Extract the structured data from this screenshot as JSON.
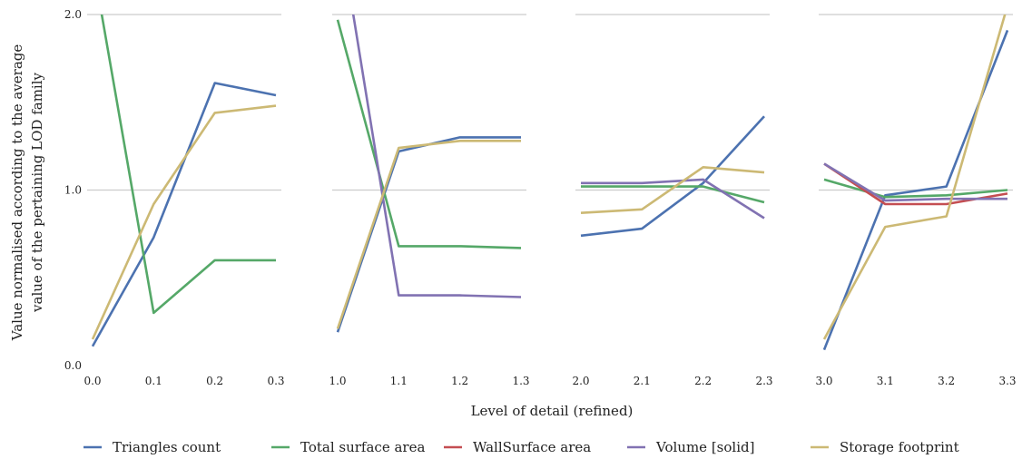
{
  "chart_data": {
    "type": "line",
    "ylabel": "Value normalised according to the average value of the pertaining LOD family",
    "ylabel_lines": [
      "Value normalised according to the average",
      "value of the pertaining LOD family"
    ],
    "xlabel": "Level of detail (refined)",
    "ylim": [
      0,
      2
    ],
    "yticks": [
      "0.0",
      "1.0",
      "2.0"
    ],
    "grid": "horizontal",
    "legend_position": "bottom",
    "series_styles": [
      {
        "name": "Triangles count",
        "color": "#4c72b0"
      },
      {
        "name": "Total surface area",
        "color": "#55a868"
      },
      {
        "name": "WallSurface area",
        "color": "#c44e52"
      },
      {
        "name": "Volume [solid]",
        "color": "#8172b2"
      },
      {
        "name": "Storage footprint",
        "color": "#ccb974"
      }
    ],
    "panels": [
      {
        "xticks": [
          "0.0",
          "0.1",
          "0.2",
          "0.3"
        ],
        "series": [
          {
            "name": "Triangles count",
            "values": [
              0.11,
              0.73,
              1.61,
              1.54
            ]
          },
          {
            "name": "Total surface area",
            "values": [
              2.3,
              0.3,
              0.6,
              0.6
            ]
          },
          {
            "name": "Storage footprint",
            "values": [
              0.15,
              0.92,
              1.44,
              1.48
            ]
          }
        ]
      },
      {
        "xticks": [
          "1.0",
          "1.1",
          "1.2",
          "1.3"
        ],
        "series": [
          {
            "name": "Triangles count",
            "values": [
              0.19,
              1.22,
              1.3,
              1.3
            ]
          },
          {
            "name": "Total surface area",
            "values": [
              1.97,
              0.68,
              0.68,
              0.67
            ]
          },
          {
            "name": "Volume [solid]",
            "values": [
              2.55,
              0.4,
              0.4,
              0.39
            ]
          },
          {
            "name": "Storage footprint",
            "values": [
              0.21,
              1.24,
              1.28,
              1.28
            ]
          }
        ]
      },
      {
        "xticks": [
          "2.0",
          "2.1",
          "2.2",
          "2.3"
        ],
        "series": [
          {
            "name": "Triangles count",
            "values": [
              0.74,
              0.78,
              1.04,
              1.42
            ]
          },
          {
            "name": "Total surface area",
            "values": [
              1.02,
              1.02,
              1.02,
              0.93
            ]
          },
          {
            "name": "Volume [solid]",
            "values": [
              1.04,
              1.04,
              1.06,
              0.84
            ]
          },
          {
            "name": "Storage footprint",
            "values": [
              0.87,
              0.89,
              1.13,
              1.1
            ]
          }
        ]
      },
      {
        "xticks": [
          "3.0",
          "3.1",
          "3.2",
          "3.3"
        ],
        "series": [
          {
            "name": "Triangles count",
            "values": [
              0.09,
              0.97,
              1.02,
              1.91
            ]
          },
          {
            "name": "Total surface area",
            "values": [
              1.06,
              0.96,
              0.97,
              1.0
            ]
          },
          {
            "name": "WallSurface area",
            "values": [
              1.15,
              0.92,
              0.92,
              0.98
            ]
          },
          {
            "name": "Volume [solid]",
            "values": [
              1.15,
              0.94,
              0.95,
              0.95
            ]
          },
          {
            "name": "Storage footprint",
            "values": [
              0.15,
              0.79,
              0.85,
              2.05
            ]
          }
        ]
      }
    ]
  }
}
